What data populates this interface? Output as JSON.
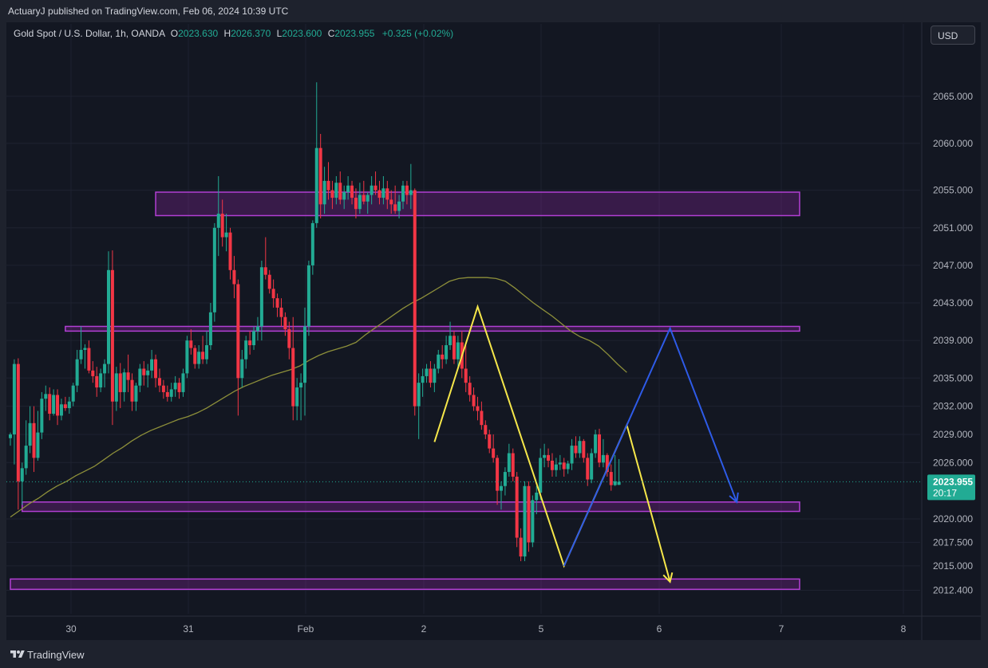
{
  "header": {
    "publisher": "ActuaryJ published on TradingView.com, Feb 06, 2024 10:39 UTC"
  },
  "legend": {
    "symbol": "Gold Spot / U.S. Dollar, 1h, OANDA",
    "o_label": "O",
    "o_value": "2023.630",
    "h_label": "H",
    "h_value": "2026.370",
    "l_label": "L",
    "l_value": "2023.600",
    "c_label": "C",
    "c_value": "2023.955",
    "change": "+0.325 (+0.02%)"
  },
  "currency": "USD",
  "footer": {
    "brand": "TradingView"
  },
  "colors": {
    "up": "#22ab94",
    "down": "#f23645",
    "zone": "#b23fd4",
    "zone_fill": "rgba(156,39,176,0.28)",
    "ma": "#8d8f3a",
    "projection_yellow": "#f6e74a",
    "projection_blue": "#2e5be8"
  },
  "chart_data": {
    "type": "candlestick",
    "symbol": "Gold Spot / U.S. Dollar",
    "timeframe": "1h",
    "x_ticks": [
      "30",
      "31",
      "Feb",
      "2",
      "5",
      "6",
      "7",
      "8"
    ],
    "y_ticks": [
      "2065.000",
      "2060.000",
      "2055.000",
      "2051.000",
      "2047.000",
      "2043.000",
      "2039.000",
      "2035.000",
      "2032.000",
      "2029.000",
      "2026.000",
      "2020.000",
      "2017.500",
      "2015.000",
      "2012.400"
    ],
    "ylim": [
      2011.0,
      2068.0
    ],
    "last_price": "2023.955",
    "countdown": "20:17",
    "candles": [
      {
        "o": 2028.6,
        "h": 2029.2,
        "l": 2027.8,
        "c": 2029.0
      },
      {
        "o": 2029.0,
        "h": 2037.0,
        "l": 2025.8,
        "c": 2036.5
      },
      {
        "o": 2036.5,
        "h": 2037.1,
        "l": 2021.0,
        "c": 2024.0
      },
      {
        "o": 2024.0,
        "h": 2026.0,
        "l": 2021.5,
        "c": 2025.4
      },
      {
        "o": 2025.4,
        "h": 2030.5,
        "l": 2024.7,
        "c": 2027.8
      },
      {
        "o": 2027.8,
        "h": 2032.0,
        "l": 2027.0,
        "c": 2030.2
      },
      {
        "o": 2030.2,
        "h": 2032.0,
        "l": 2025.0,
        "c": 2026.5
      },
      {
        "o": 2026.5,
        "h": 2031.5,
        "l": 2026.2,
        "c": 2029.2
      },
      {
        "o": 2029.2,
        "h": 2033.5,
        "l": 2028.5,
        "c": 2032.8
      },
      {
        "o": 2032.8,
        "h": 2034.2,
        "l": 2031.5,
        "c": 2033.3
      },
      {
        "o": 2033.3,
        "h": 2034.0,
        "l": 2030.5,
        "c": 2031.2
      },
      {
        "o": 2031.2,
        "h": 2033.8,
        "l": 2031.0,
        "c": 2033.2
      },
      {
        "o": 2033.2,
        "h": 2033.8,
        "l": 2030.0,
        "c": 2031.0
      },
      {
        "o": 2031.0,
        "h": 2032.8,
        "l": 2030.5,
        "c": 2032.2
      },
      {
        "o": 2032.2,
        "h": 2033.0,
        "l": 2031.5,
        "c": 2031.8
      },
      {
        "o": 2031.8,
        "h": 2033.0,
        "l": 2031.2,
        "c": 2032.5
      },
      {
        "o": 2032.5,
        "h": 2034.5,
        "l": 2032.0,
        "c": 2034.2
      },
      {
        "o": 2034.2,
        "h": 2038.0,
        "l": 2033.5,
        "c": 2037.0
      },
      {
        "o": 2037.0,
        "h": 2040.5,
        "l": 2036.5,
        "c": 2038.0
      },
      {
        "o": 2038.0,
        "h": 2038.6,
        "l": 2036.0,
        "c": 2038.2
      },
      {
        "o": 2038.2,
        "h": 2039.0,
        "l": 2035.5,
        "c": 2035.8
      },
      {
        "o": 2035.8,
        "h": 2036.8,
        "l": 2034.5,
        "c": 2035.2
      },
      {
        "o": 2035.2,
        "h": 2036.2,
        "l": 2033.0,
        "c": 2034.0
      },
      {
        "o": 2034.0,
        "h": 2036.0,
        "l": 2033.5,
        "c": 2035.5
      },
      {
        "o": 2035.5,
        "h": 2037.0,
        "l": 2034.0,
        "c": 2036.5
      },
      {
        "o": 2036.5,
        "h": 2048.5,
        "l": 2035.5,
        "c": 2046.5
      },
      {
        "o": 2046.5,
        "h": 2048.6,
        "l": 2030.0,
        "c": 2032.5
      },
      {
        "o": 2032.5,
        "h": 2036.2,
        "l": 2031.5,
        "c": 2035.5
      },
      {
        "o": 2035.5,
        "h": 2036.6,
        "l": 2031.8,
        "c": 2033.5
      },
      {
        "o": 2033.5,
        "h": 2036.0,
        "l": 2032.5,
        "c": 2035.6
      },
      {
        "o": 2035.6,
        "h": 2037.5,
        "l": 2033.5,
        "c": 2034.8
      },
      {
        "o": 2034.8,
        "h": 2035.5,
        "l": 2031.5,
        "c": 2032.5
      },
      {
        "o": 2032.5,
        "h": 2034.5,
        "l": 2031.5,
        "c": 2034.2
      },
      {
        "o": 2034.2,
        "h": 2036.5,
        "l": 2033.5,
        "c": 2036.0
      },
      {
        "o": 2036.0,
        "h": 2036.8,
        "l": 2034.2,
        "c": 2035.3
      },
      {
        "o": 2035.3,
        "h": 2036.5,
        "l": 2034.0,
        "c": 2035.8
      },
      {
        "o": 2035.8,
        "h": 2038.0,
        "l": 2035.0,
        "c": 2037.0
      },
      {
        "o": 2037.0,
        "h": 2037.5,
        "l": 2034.0,
        "c": 2035.0
      },
      {
        "o": 2035.0,
        "h": 2036.0,
        "l": 2033.5,
        "c": 2034.2
      },
      {
        "o": 2034.2,
        "h": 2034.8,
        "l": 2032.8,
        "c": 2033.5
      },
      {
        "o": 2033.5,
        "h": 2034.2,
        "l": 2032.5,
        "c": 2033.0
      },
      {
        "o": 2033.0,
        "h": 2034.5,
        "l": 2032.5,
        "c": 2033.8
      },
      {
        "o": 2033.8,
        "h": 2035.2,
        "l": 2033.0,
        "c": 2034.5
      },
      {
        "o": 2034.5,
        "h": 2035.0,
        "l": 2032.8,
        "c": 2033.5
      },
      {
        "o": 2033.5,
        "h": 2036.0,
        "l": 2033.0,
        "c": 2035.5
      },
      {
        "o": 2035.5,
        "h": 2039.5,
        "l": 2035.0,
        "c": 2039.0
      },
      {
        "o": 2039.0,
        "h": 2040.2,
        "l": 2037.5,
        "c": 2038.2
      },
      {
        "o": 2038.2,
        "h": 2038.5,
        "l": 2036.0,
        "c": 2036.5
      },
      {
        "o": 2036.5,
        "h": 2038.5,
        "l": 2036.0,
        "c": 2037.8
      },
      {
        "o": 2037.8,
        "h": 2039.5,
        "l": 2036.5,
        "c": 2037.0
      },
      {
        "o": 2037.0,
        "h": 2040.0,
        "l": 2036.5,
        "c": 2038.5
      },
      {
        "o": 2038.5,
        "h": 2043.0,
        "l": 2038.0,
        "c": 2042.0
      },
      {
        "o": 2042.0,
        "h": 2051.5,
        "l": 2041.0,
        "c": 2051.0
      },
      {
        "o": 2051.0,
        "h": 2056.5,
        "l": 2048.0,
        "c": 2052.5
      },
      {
        "o": 2052.5,
        "h": 2054.0,
        "l": 2049.0,
        "c": 2050.0
      },
      {
        "o": 2050.0,
        "h": 2052.5,
        "l": 2048.5,
        "c": 2050.5
      },
      {
        "o": 2050.5,
        "h": 2051.0,
        "l": 2045.5,
        "c": 2046.5
      },
      {
        "o": 2046.5,
        "h": 2048.0,
        "l": 2043.5,
        "c": 2045.0
      },
      {
        "o": 2045.0,
        "h": 2045.5,
        "l": 2031.0,
        "c": 2035.0
      },
      {
        "o": 2035.0,
        "h": 2038.0,
        "l": 2034.0,
        "c": 2037.0
      },
      {
        "o": 2037.0,
        "h": 2039.5,
        "l": 2036.0,
        "c": 2039.0
      },
      {
        "o": 2039.0,
        "h": 2040.0,
        "l": 2037.5,
        "c": 2038.5
      },
      {
        "o": 2038.5,
        "h": 2040.5,
        "l": 2038.0,
        "c": 2040.0
      },
      {
        "o": 2040.0,
        "h": 2041.5,
        "l": 2039.0,
        "c": 2040.5
      },
      {
        "o": 2040.5,
        "h": 2047.5,
        "l": 2039.0,
        "c": 2046.8
      },
      {
        "o": 2046.8,
        "h": 2050.0,
        "l": 2045.5,
        "c": 2046.0
      },
      {
        "o": 2046.0,
        "h": 2046.5,
        "l": 2044.0,
        "c": 2044.5
      },
      {
        "o": 2044.5,
        "h": 2045.5,
        "l": 2042.5,
        "c": 2043.5
      },
      {
        "o": 2043.5,
        "h": 2044.0,
        "l": 2041.5,
        "c": 2042.5
      },
      {
        "o": 2042.5,
        "h": 2043.5,
        "l": 2040.5,
        "c": 2041.5
      },
      {
        "o": 2041.5,
        "h": 2042.0,
        "l": 2039.5,
        "c": 2040.2
      },
      {
        "o": 2040.2,
        "h": 2041.0,
        "l": 2037.0,
        "c": 2038.2
      },
      {
        "o": 2038.2,
        "h": 2041.5,
        "l": 2030.5,
        "c": 2032.0
      },
      {
        "o": 2032.0,
        "h": 2035.0,
        "l": 2030.5,
        "c": 2034.0
      },
      {
        "o": 2034.0,
        "h": 2035.5,
        "l": 2030.5,
        "c": 2034.5
      },
      {
        "o": 2034.5,
        "h": 2042.5,
        "l": 2031.0,
        "c": 2040.5
      },
      {
        "o": 2040.5,
        "h": 2047.5,
        "l": 2039.5,
        "c": 2047.0
      },
      {
        "o": 2047.0,
        "h": 2051.8,
        "l": 2046.0,
        "c": 2051.5
      },
      {
        "o": 2051.5,
        "h": 2066.5,
        "l": 2051.0,
        "c": 2059.5
      },
      {
        "o": 2059.5,
        "h": 2061.0,
        "l": 2052.0,
        "c": 2053.5
      },
      {
        "o": 2053.5,
        "h": 2057.5,
        "l": 2052.5,
        "c": 2056.0
      },
      {
        "o": 2056.0,
        "h": 2058.0,
        "l": 2054.0,
        "c": 2055.0
      },
      {
        "o": 2055.0,
        "h": 2056.0,
        "l": 2053.0,
        "c": 2054.2
      },
      {
        "o": 2054.2,
        "h": 2056.5,
        "l": 2053.5,
        "c": 2055.8
      },
      {
        "o": 2055.8,
        "h": 2057.0,
        "l": 2053.5,
        "c": 2054.0
      },
      {
        "o": 2054.0,
        "h": 2055.5,
        "l": 2053.0,
        "c": 2054.8
      },
      {
        "o": 2054.8,
        "h": 2056.5,
        "l": 2054.0,
        "c": 2055.5
      },
      {
        "o": 2055.5,
        "h": 2056.0,
        "l": 2053.5,
        "c": 2054.2
      },
      {
        "o": 2054.2,
        "h": 2055.2,
        "l": 2052.0,
        "c": 2053.0
      },
      {
        "o": 2053.0,
        "h": 2055.8,
        "l": 2052.5,
        "c": 2054.5
      },
      {
        "o": 2054.5,
        "h": 2056.0,
        "l": 2053.5,
        "c": 2053.8
      },
      {
        "o": 2053.8,
        "h": 2054.8,
        "l": 2052.5,
        "c": 2054.5
      },
      {
        "o": 2054.5,
        "h": 2056.5,
        "l": 2053.5,
        "c": 2055.5
      },
      {
        "o": 2055.5,
        "h": 2057.0,
        "l": 2054.5,
        "c": 2055.0
      },
      {
        "o": 2055.0,
        "h": 2056.0,
        "l": 2053.5,
        "c": 2054.2
      },
      {
        "o": 2054.2,
        "h": 2056.5,
        "l": 2053.5,
        "c": 2055.2
      },
      {
        "o": 2055.2,
        "h": 2056.0,
        "l": 2053.0,
        "c": 2054.0
      },
      {
        "o": 2054.0,
        "h": 2055.0,
        "l": 2052.5,
        "c": 2053.5
      },
      {
        "o": 2053.5,
        "h": 2055.5,
        "l": 2052.5,
        "c": 2052.8
      },
      {
        "o": 2052.8,
        "h": 2054.5,
        "l": 2052.0,
        "c": 2053.8
      },
      {
        "o": 2053.8,
        "h": 2056.0,
        "l": 2053.0,
        "c": 2055.5
      },
      {
        "o": 2055.5,
        "h": 2056.0,
        "l": 2053.5,
        "c": 2054.5
      },
      {
        "o": 2054.5,
        "h": 2057.8,
        "l": 2053.0,
        "c": 2055.0
      },
      {
        "o": 2055.0,
        "h": 2055.2,
        "l": 2031.0,
        "c": 2032.0
      },
      {
        "o": 2032.0,
        "h": 2035.5,
        "l": 2028.5,
        "c": 2034.5
      },
      {
        "o": 2034.5,
        "h": 2036.0,
        "l": 2033.0,
        "c": 2035.2
      },
      {
        "o": 2035.2,
        "h": 2036.5,
        "l": 2034.5,
        "c": 2036.0
      },
      {
        "o": 2036.0,
        "h": 2036.8,
        "l": 2034.0,
        "c": 2034.5
      },
      {
        "o": 2034.5,
        "h": 2036.5,
        "l": 2033.5,
        "c": 2036.0
      },
      {
        "o": 2036.0,
        "h": 2038.0,
        "l": 2035.5,
        "c": 2037.5
      },
      {
        "o": 2037.5,
        "h": 2038.5,
        "l": 2036.0,
        "c": 2037.0
      },
      {
        "o": 2037.0,
        "h": 2039.5,
        "l": 2036.5,
        "c": 2038.5
      },
      {
        "o": 2038.5,
        "h": 2041.0,
        "l": 2038.0,
        "c": 2039.5
      },
      {
        "o": 2039.5,
        "h": 2040.0,
        "l": 2036.5,
        "c": 2037.0
      },
      {
        "o": 2037.0,
        "h": 2039.5,
        "l": 2036.0,
        "c": 2038.8
      },
      {
        "o": 2038.8,
        "h": 2040.0,
        "l": 2035.0,
        "c": 2036.0
      },
      {
        "o": 2036.0,
        "h": 2038.5,
        "l": 2033.5,
        "c": 2034.5
      },
      {
        "o": 2034.5,
        "h": 2035.2,
        "l": 2032.5,
        "c": 2033.2
      },
      {
        "o": 2033.2,
        "h": 2034.0,
        "l": 2031.5,
        "c": 2032.0
      },
      {
        "o": 2032.0,
        "h": 2033.0,
        "l": 2030.5,
        "c": 2031.5
      },
      {
        "o": 2031.5,
        "h": 2032.5,
        "l": 2029.5,
        "c": 2030.0
      },
      {
        "o": 2030.0,
        "h": 2030.5,
        "l": 2028.5,
        "c": 2029.0
      },
      {
        "o": 2029.0,
        "h": 2029.5,
        "l": 2027.0,
        "c": 2027.5
      },
      {
        "o": 2027.5,
        "h": 2029.0,
        "l": 2026.0,
        "c": 2026.5
      },
      {
        "o": 2026.5,
        "h": 2026.8,
        "l": 2021.5,
        "c": 2023.0
      },
      {
        "o": 2023.0,
        "h": 2024.0,
        "l": 2021.0,
        "c": 2023.5
      },
      {
        "o": 2023.5,
        "h": 2025.5,
        "l": 2022.5,
        "c": 2025.0
      },
      {
        "o": 2025.0,
        "h": 2028.0,
        "l": 2024.5,
        "c": 2027.0
      },
      {
        "o": 2027.0,
        "h": 2027.5,
        "l": 2024.0,
        "c": 2024.5
      },
      {
        "o": 2024.5,
        "h": 2025.0,
        "l": 2017.0,
        "c": 2018.0
      },
      {
        "o": 2018.0,
        "h": 2019.0,
        "l": 2015.5,
        "c": 2016.0
      },
      {
        "o": 2016.0,
        "h": 2024.0,
        "l": 2015.5,
        "c": 2023.5
      },
      {
        "o": 2023.5,
        "h": 2024.0,
        "l": 2016.5,
        "c": 2017.5
      },
      {
        "o": 2017.5,
        "h": 2022.5,
        "l": 2017.0,
        "c": 2022.0
      },
      {
        "o": 2022.0,
        "h": 2023.5,
        "l": 2020.5,
        "c": 2022.8
      },
      {
        "o": 2022.8,
        "h": 2027.5,
        "l": 2022.0,
        "c": 2026.5
      },
      {
        "o": 2026.5,
        "h": 2028.0,
        "l": 2025.5,
        "c": 2026.8
      },
      {
        "o": 2026.8,
        "h": 2027.5,
        "l": 2025.5,
        "c": 2026.2
      },
      {
        "o": 2026.2,
        "h": 2027.0,
        "l": 2024.5,
        "c": 2025.2
      },
      {
        "o": 2025.2,
        "h": 2026.5,
        "l": 2024.5,
        "c": 2025.8
      },
      {
        "o": 2025.8,
        "h": 2026.8,
        "l": 2025.2,
        "c": 2026.0
      },
      {
        "o": 2026.0,
        "h": 2026.5,
        "l": 2024.5,
        "c": 2025.3
      },
      {
        "o": 2025.3,
        "h": 2026.2,
        "l": 2024.8,
        "c": 2025.9
      },
      {
        "o": 2025.9,
        "h": 2028.5,
        "l": 2025.2,
        "c": 2027.8
      },
      {
        "o": 2027.8,
        "h": 2028.8,
        "l": 2026.5,
        "c": 2027.0
      },
      {
        "o": 2027.0,
        "h": 2028.8,
        "l": 2026.5,
        "c": 2028.3
      },
      {
        "o": 2028.3,
        "h": 2028.5,
        "l": 2026.0,
        "c": 2026.5
      },
      {
        "o": 2026.5,
        "h": 2027.0,
        "l": 2023.5,
        "c": 2024.2
      },
      {
        "o": 2024.2,
        "h": 2027.5,
        "l": 2023.8,
        "c": 2027.0
      },
      {
        "o": 2027.0,
        "h": 2029.5,
        "l": 2026.5,
        "c": 2029.0
      },
      {
        "o": 2029.0,
        "h": 2029.6,
        "l": 2025.5,
        "c": 2026.0
      },
      {
        "o": 2026.0,
        "h": 2028.5,
        "l": 2025.5,
        "c": 2026.8
      },
      {
        "o": 2026.8,
        "h": 2027.0,
        "l": 2024.5,
        "c": 2025.0
      },
      {
        "o": 2025.0,
        "h": 2025.8,
        "l": 2023.0,
        "c": 2023.6
      },
      {
        "o": 2023.6,
        "h": 2026.8,
        "l": 2023.5,
        "c": 2024.0
      },
      {
        "o": 2023.63,
        "h": 2026.37,
        "l": 2023.6,
        "c": 2023.955
      }
    ],
    "moving_average": [
      2020.2,
      2020.9,
      2021.6,
      2022.2,
      2022.9,
      2023.5,
      2024.0,
      2024.6,
      2025.1,
      2025.6,
      2026.3,
      2027.0,
      2027.6,
      2028.3,
      2028.9,
      2029.4,
      2029.8,
      2030.2,
      2030.6,
      2030.9,
      2031.3,
      2031.8,
      2032.4,
      2033.0,
      2033.6,
      2034.1,
      2034.5,
      2034.9,
      2035.3,
      2035.6,
      2035.9,
      2036.3,
      2036.9,
      2037.4,
      2037.8,
      2038.1,
      2038.4,
      2038.8,
      2039.6,
      2040.3,
      2041.0,
      2041.7,
      2042.4,
      2043.0,
      2043.5,
      2044.1,
      2044.7,
      2045.3,
      2045.6,
      2045.7,
      2045.7,
      2045.7,
      2045.6,
      2045.3,
      2044.6,
      2043.8,
      2043.0,
      2042.3,
      2041.6,
      2040.8,
      2040.0,
      2039.4,
      2039.0,
      2038.4,
      2037.5,
      2036.5,
      2035.6
    ],
    "ma_x_range": [
      0,
      157
    ],
    "zones": [
      {
        "from_index": 37,
        "to_index": 201,
        "low": 2052.3,
        "high": 2054.8
      },
      {
        "from_index": 14,
        "to_index": 201,
        "low": 2040.0,
        "high": 2040.5
      },
      {
        "from_index": 3,
        "to_index": 201,
        "low": 2020.8,
        "high": 2021.8
      },
      {
        "from_index": 0,
        "to_index": 201,
        "low": 2012.5,
        "high": 2013.6
      }
    ],
    "projection_yellow": [
      [
        108,
        2028.2
      ],
      [
        119,
        2042.6
      ],
      [
        141,
        2015.0
      ],
      [
        157,
        2030.0
      ],
      [
        168,
        2013.3
      ]
    ],
    "projection_blue": [
      [
        141,
        2015.0
      ],
      [
        168,
        2040.3
      ],
      [
        185,
        2021.8
      ]
    ]
  }
}
